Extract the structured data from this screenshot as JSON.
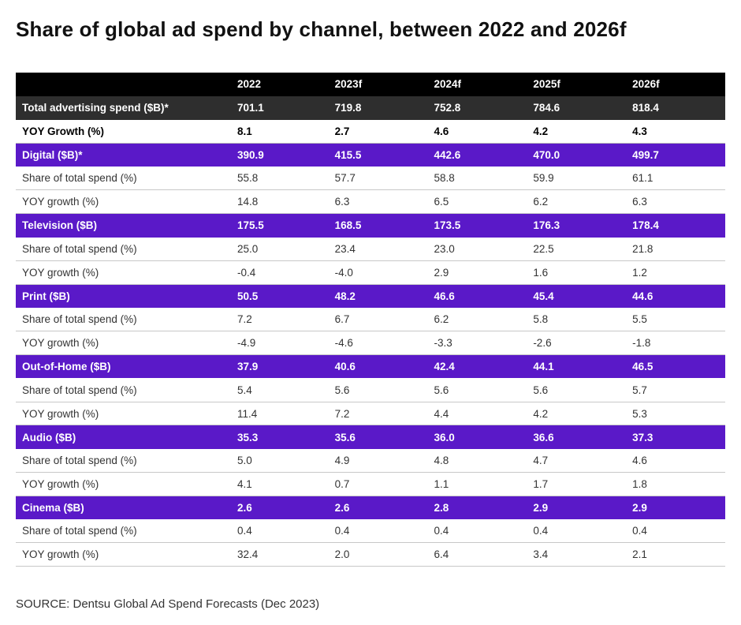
{
  "title": "Share of global ad spend by channel, between 2022 and 2026f",
  "source": "SOURCE: Dentsu Global Ad Spend Forecasts (Dec 2023)",
  "colors": {
    "header": "#000000",
    "total": "#2e2e2e",
    "channel": "#5a19c8"
  },
  "chart_data": {
    "type": "table",
    "title": "Share of global ad spend by channel, between 2022 and 2026f",
    "columns": [
      "",
      "2022",
      "2023f",
      "2024f",
      "2025f",
      "2026f"
    ],
    "rows": [
      {
        "kind": "total",
        "label": "Total advertising spend ($B)*",
        "values": [
          "701.1",
          "719.8",
          "752.8",
          "784.6",
          "818.4"
        ]
      },
      {
        "kind": "yoy-total",
        "label": "YOY Growth (%)",
        "values": [
          "8.1",
          "2.7",
          "4.6",
          "4.2",
          "4.3"
        ]
      },
      {
        "kind": "channel",
        "label": "Digital ($B)*",
        "values": [
          "390.9",
          "415.5",
          "442.6",
          "470.0",
          "499.7"
        ]
      },
      {
        "kind": "sub",
        "label": "Share of total spend (%)",
        "values": [
          "55.8",
          "57.7",
          "58.8",
          "59.9",
          "61.1"
        ]
      },
      {
        "kind": "sub",
        "label": "YOY growth (%)",
        "values": [
          "14.8",
          "6.3",
          "6.5",
          "6.2",
          "6.3"
        ]
      },
      {
        "kind": "channel",
        "label": "Television ($B)",
        "values": [
          "175.5",
          "168.5",
          "173.5",
          "176.3",
          "178.4"
        ]
      },
      {
        "kind": "sub",
        "label": "Share of total spend (%)",
        "values": [
          "25.0",
          "23.4",
          "23.0",
          "22.5",
          "21.8"
        ]
      },
      {
        "kind": "sub",
        "label": "YOY growth (%)",
        "values": [
          "-0.4",
          "-4.0",
          "2.9",
          "1.6",
          "1.2"
        ]
      },
      {
        "kind": "channel",
        "label": "Print ($B)",
        "values": [
          "50.5",
          "48.2",
          "46.6",
          "45.4",
          "44.6"
        ]
      },
      {
        "kind": "sub",
        "label": "Share of total spend (%)",
        "values": [
          "7.2",
          "6.7",
          "6.2",
          "5.8",
          "5.5"
        ]
      },
      {
        "kind": "sub",
        "label": "YOY growth (%)",
        "values": [
          "-4.9",
          "-4.6",
          "-3.3",
          "-2.6",
          "-1.8"
        ]
      },
      {
        "kind": "channel",
        "label": "Out-of-Home ($B)",
        "values": [
          "37.9",
          "40.6",
          "42.4",
          "44.1",
          "46.5"
        ]
      },
      {
        "kind": "sub",
        "label": "Share of total spend (%)",
        "values": [
          "5.4",
          "5.6",
          "5.6",
          "5.6",
          "5.7"
        ]
      },
      {
        "kind": "sub",
        "label": "YOY growth (%)",
        "values": [
          "11.4",
          "7.2",
          "4.4",
          "4.2",
          "5.3"
        ]
      },
      {
        "kind": "channel",
        "label": "Audio ($B)",
        "values": [
          "35.3",
          "35.6",
          "36.0",
          "36.6",
          "37.3"
        ]
      },
      {
        "kind": "sub",
        "label": "Share of total spend (%)",
        "values": [
          "5.0",
          "4.9",
          "4.8",
          "4.7",
          "4.6"
        ]
      },
      {
        "kind": "sub",
        "label": "YOY growth (%)",
        "values": [
          "4.1",
          "0.7",
          "1.1",
          "1.7",
          "1.8"
        ]
      },
      {
        "kind": "channel",
        "label": "Cinema ($B)",
        "values": [
          "2.6",
          "2.6",
          "2.8",
          "2.9",
          "2.9"
        ]
      },
      {
        "kind": "sub",
        "label": "Share of total spend (%)",
        "values": [
          "0.4",
          "0.4",
          "0.4",
          "0.4",
          "0.4"
        ]
      },
      {
        "kind": "sub",
        "label": "YOY growth (%)",
        "values": [
          "32.4",
          "2.0",
          "6.4",
          "3.4",
          "2.1"
        ]
      }
    ]
  }
}
